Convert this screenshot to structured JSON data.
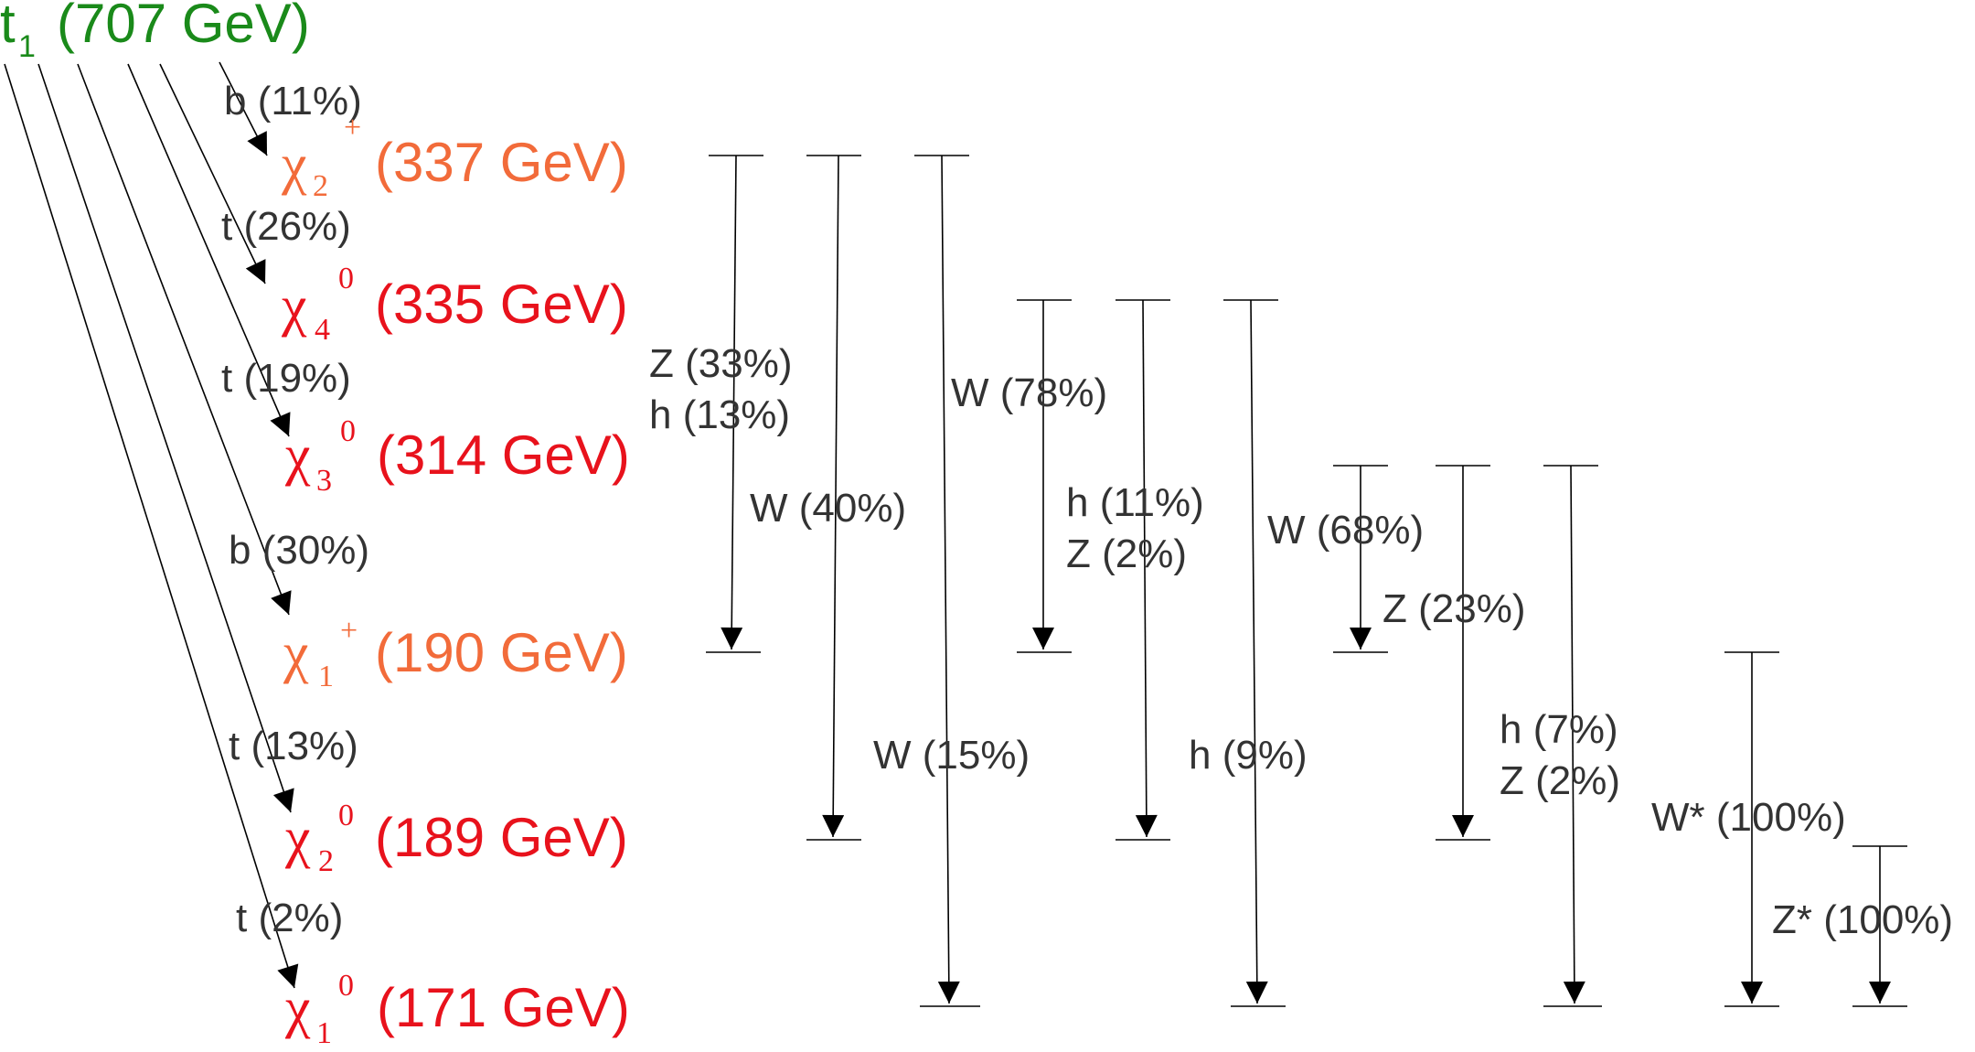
{
  "colors": {
    "green": "#1a8a1a",
    "orange": "#f26b3a",
    "red": "#e8121c",
    "line": "#000000",
    "text": "#333333"
  },
  "parent": {
    "symbol": "t",
    "sub": "1",
    "mass": "(707 GeV)"
  },
  "states": [
    {
      "symbol": "χ",
      "sub": "2",
      "sup": "+",
      "mass": "(337 GeV)"
    },
    {
      "symbol": "χ",
      "sub": "4",
      "sup": "0",
      "mass": "(335 GeV)"
    },
    {
      "symbol": "χ",
      "sub": "3",
      "sup": "0",
      "mass": "(314 GeV)"
    },
    {
      "symbol": "χ",
      "sub": "1",
      "sup": "+",
      "mass": "(190 GeV)"
    },
    {
      "symbol": "χ",
      "sub": "2",
      "sup": "0",
      "mass": "(189 GeV)"
    },
    {
      "symbol": "χ",
      "sub": "1",
      "sup": "0",
      "mass": "(171 GeV)"
    }
  ],
  "t1_branches": [
    {
      "to": "337",
      "label": "b (11%)"
    },
    {
      "to": "335",
      "label": "t (26%)"
    },
    {
      "to": "314",
      "label": "t (19%)"
    },
    {
      "to": "190",
      "label": "b (30%)"
    },
    {
      "to": "189",
      "label": "t (13%)"
    },
    {
      "to": "171",
      "label": "t (2%)"
    }
  ],
  "chi2p_labels": [
    "Z (33%)",
    "h (13%)",
    "W (40%)",
    "W (78%)"
  ],
  "chi4_labels": [
    "h (11%)",
    "Z (2%)",
    "W (68%)"
  ],
  "chi3_labels": [
    "Z (23%)",
    "h (7%)",
    "Z (2%)"
  ],
  "x_to_x_labels": [
    "W (15%)",
    "h (9%)"
  ],
  "chi1p_label": "W* (100%)",
  "chi2_label": "Z* (100%)"
}
